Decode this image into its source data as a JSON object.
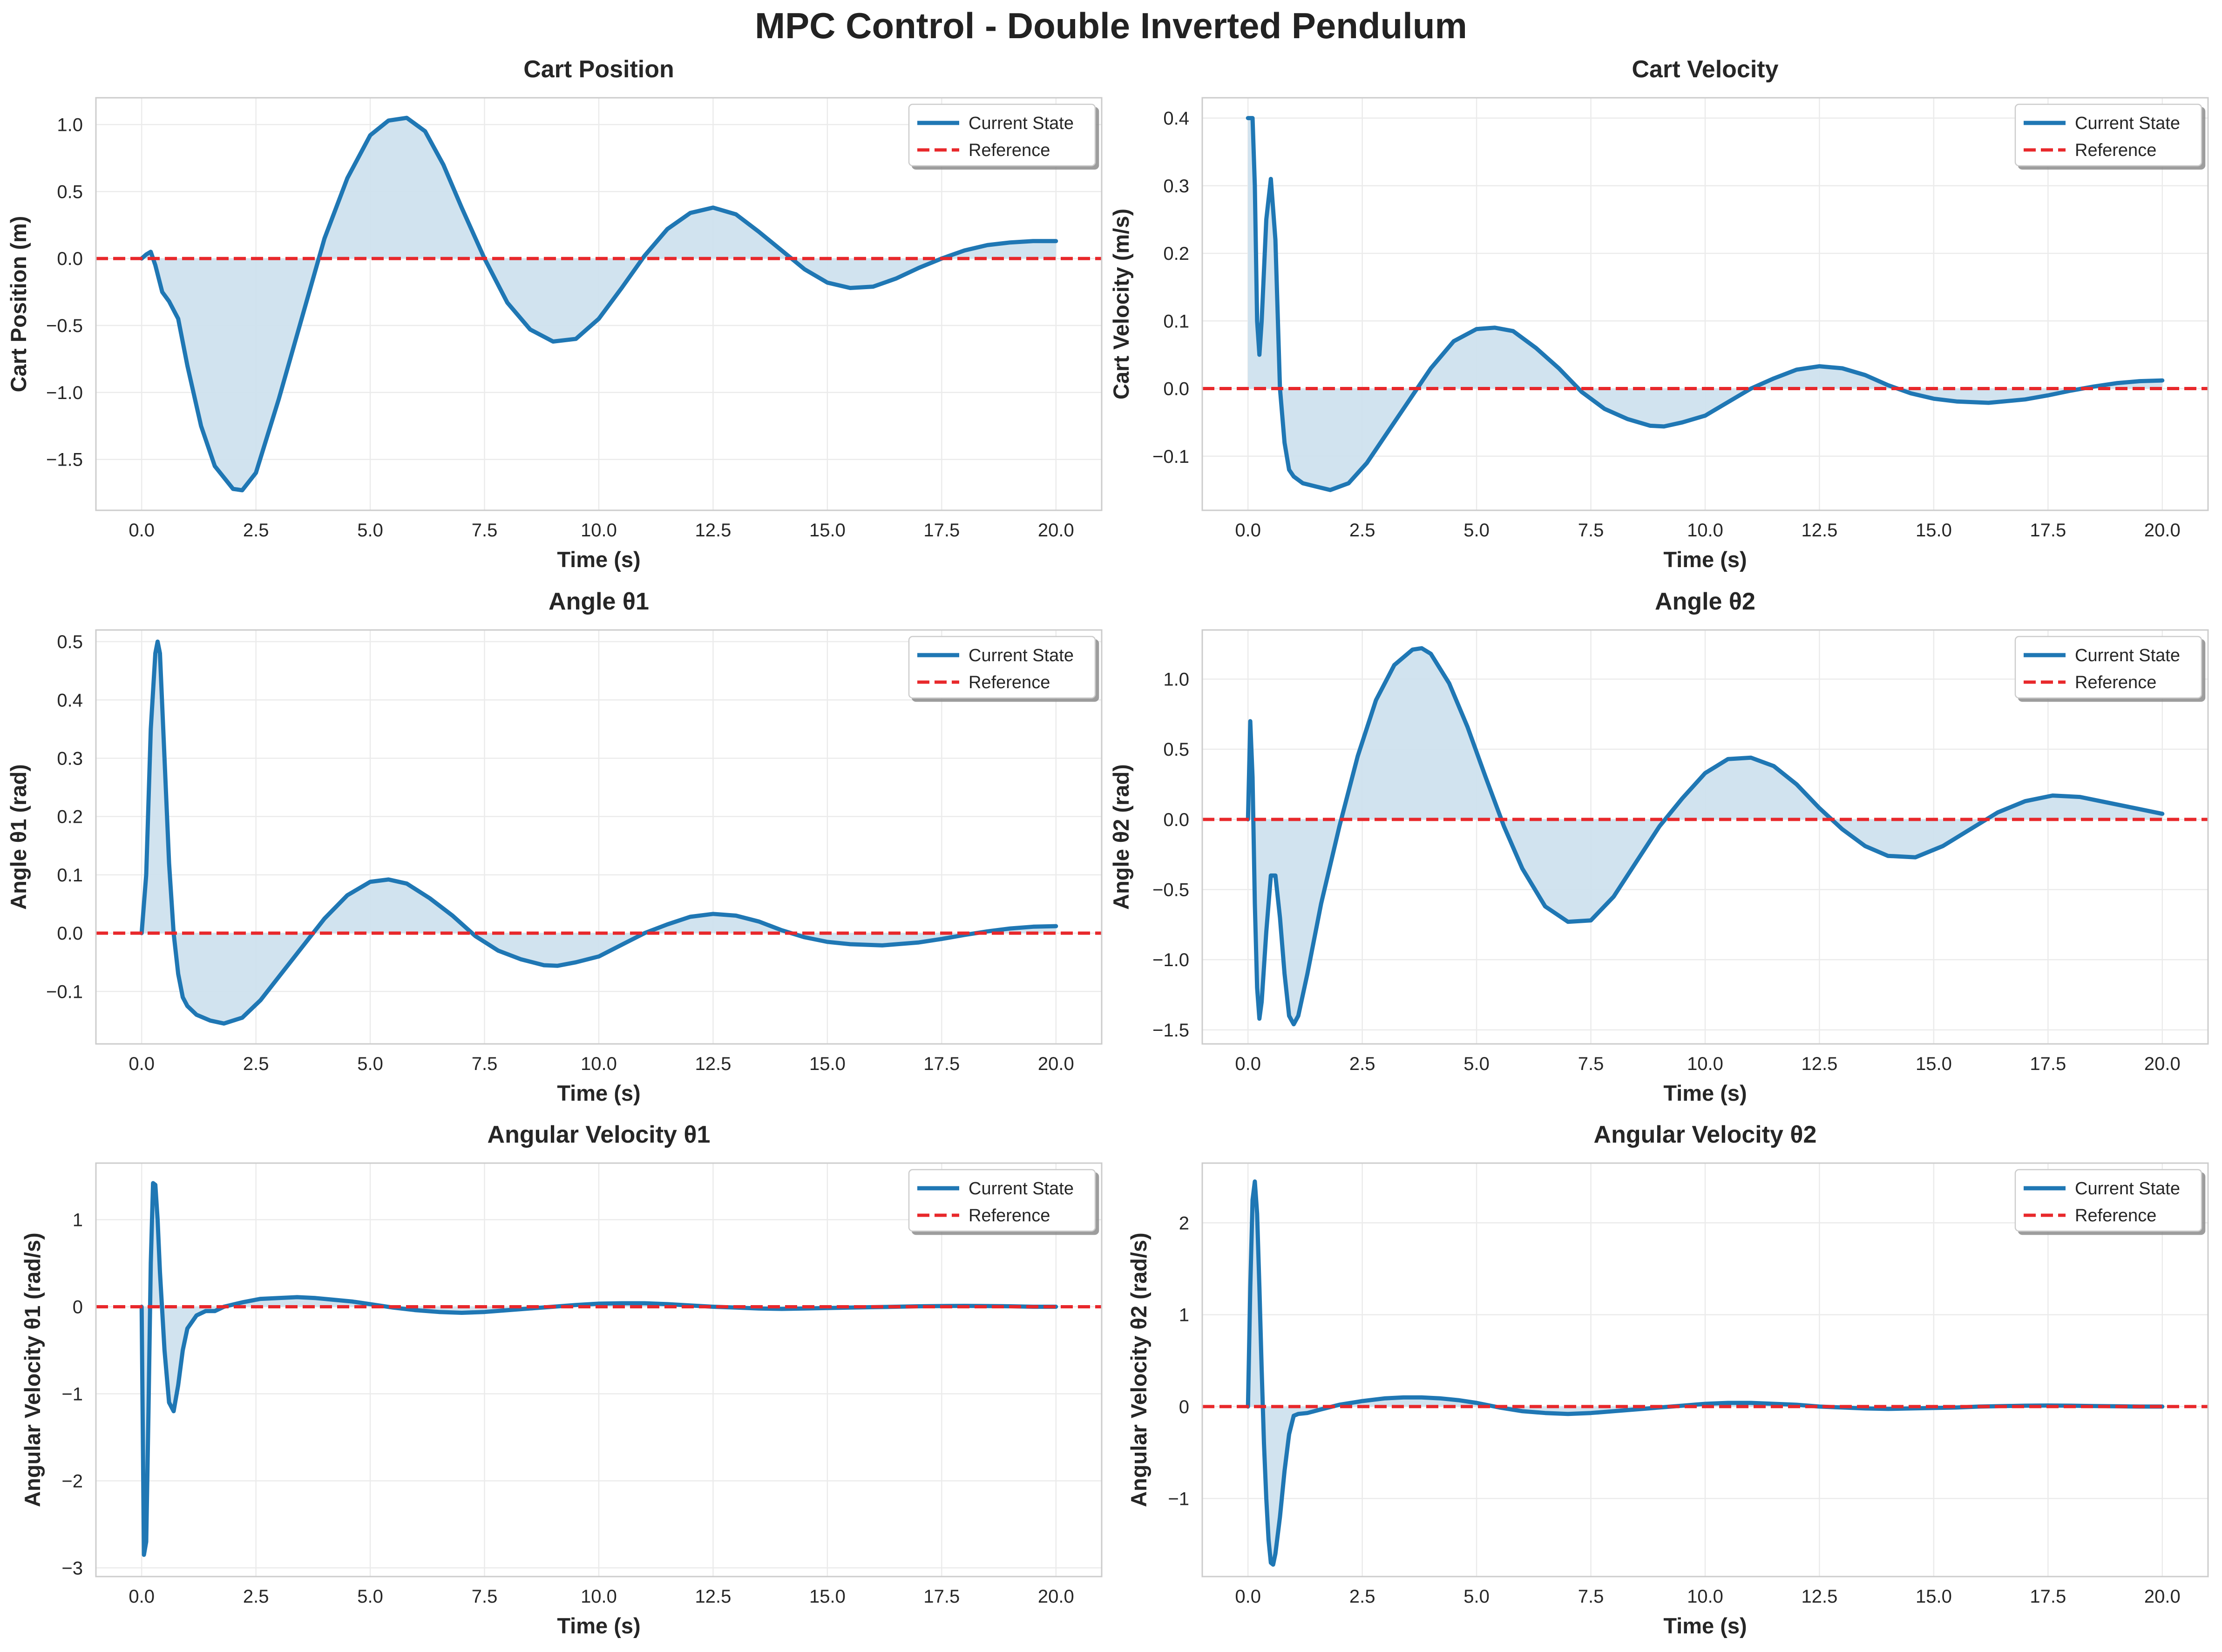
{
  "figure_title": "MPC Control - Double Inverted Pendulum",
  "colors": {
    "state": "#1f77b4",
    "reference": "#e8282b",
    "fill": "#cfe1ee",
    "grid": "#ebebeb",
    "spine": "#cccccc"
  },
  "chart_data": [
    {
      "type": "line",
      "title": "Cart Position",
      "xlabel": "Time (s)",
      "ylabel": "Cart Position (m)",
      "xlim": [
        -1,
        21
      ],
      "ylim": [
        -1.88,
        1.2
      ],
      "xticks": [
        0,
        2.5,
        5,
        7.5,
        10,
        12.5,
        15,
        17.5,
        20
      ],
      "xtick_labels": [
        "0.0",
        "2.5",
        "5.0",
        "7.5",
        "10.0",
        "12.5",
        "15.0",
        "17.5",
        "20.0"
      ],
      "yticks": [
        -1.5,
        -1.0,
        -0.5,
        0.0,
        0.5,
        1.0
      ],
      "ytick_labels": [
        "−1.5",
        "−1.0",
        "−0.5",
        "0.0",
        "0.5",
        "1.0"
      ],
      "legend": [
        "Current State",
        "Reference"
      ],
      "legend_position": "upper right",
      "grid": true,
      "reference_value": 0,
      "series": [
        {
          "name": "Current State",
          "x": [
            0.0,
            0.1,
            0.2,
            0.3,
            0.45,
            0.6,
            0.8,
            1.0,
            1.3,
            1.6,
            2.0,
            2.2,
            2.5,
            3.0,
            3.5,
            4.0,
            4.5,
            5.0,
            5.4,
            5.8,
            6.2,
            6.6,
            7.0,
            7.5,
            8.0,
            8.5,
            9.0,
            9.5,
            10.0,
            10.5,
            11.0,
            11.5,
            12.0,
            12.5,
            13.0,
            13.5,
            14.0,
            14.5,
            15.0,
            15.5,
            16.0,
            16.5,
            17.0,
            17.5,
            18.0,
            18.5,
            19.0,
            19.5,
            20.0
          ],
          "y": [
            0.0,
            0.03,
            0.05,
            -0.05,
            -0.25,
            -0.32,
            -0.45,
            -0.8,
            -1.25,
            -1.55,
            -1.72,
            -1.73,
            -1.6,
            -1.05,
            -0.45,
            0.15,
            0.6,
            0.92,
            1.03,
            1.05,
            0.95,
            0.7,
            0.38,
            0.0,
            -0.33,
            -0.53,
            -0.62,
            -0.6,
            -0.45,
            -0.22,
            0.02,
            0.22,
            0.34,
            0.38,
            0.33,
            0.2,
            0.06,
            -0.08,
            -0.18,
            -0.22,
            -0.21,
            -0.15,
            -0.07,
            0.0,
            0.06,
            0.1,
            0.12,
            0.13,
            0.13
          ]
        },
        {
          "name": "Reference",
          "x": [
            0,
            20
          ],
          "y": [
            0,
            0
          ]
        }
      ]
    },
    {
      "type": "line",
      "title": "Cart Velocity",
      "xlabel": "Time (s)",
      "ylabel": "Cart Velocity (m/s)",
      "xlim": [
        -1,
        21
      ],
      "ylim": [
        -0.18,
        0.43
      ],
      "xticks": [
        0,
        2.5,
        5,
        7.5,
        10,
        12.5,
        15,
        17.5,
        20
      ],
      "xtick_labels": [
        "0.0",
        "2.5",
        "5.0",
        "7.5",
        "10.0",
        "12.5",
        "15.0",
        "17.5",
        "20.0"
      ],
      "yticks": [
        -0.1,
        0.0,
        0.1,
        0.2,
        0.3,
        0.4
      ],
      "ytick_labels": [
        "−0.1",
        "0.0",
        "0.1",
        "0.2",
        "0.3",
        "0.4"
      ],
      "legend": [
        "Current State",
        "Reference"
      ],
      "legend_position": "upper right",
      "grid": true,
      "reference_value": 0,
      "series": [
        {
          "name": "Current State",
          "x": [
            0.0,
            0.1,
            0.15,
            0.2,
            0.25,
            0.3,
            0.4,
            0.5,
            0.6,
            0.7,
            0.8,
            0.9,
            1.0,
            1.2,
            1.5,
            1.8,
            2.2,
            2.6,
            3.0,
            3.5,
            4.0,
            4.5,
            5.0,
            5.4,
            5.8,
            6.3,
            6.8,
            7.3,
            7.8,
            8.3,
            8.8,
            9.1,
            9.5,
            10.0,
            10.5,
            11.0,
            11.5,
            12.0,
            12.5,
            13.0,
            13.5,
            14.0,
            14.5,
            15.0,
            15.5,
            16.2,
            17.0,
            17.5,
            18.0,
            18.5,
            19.0,
            19.5,
            20.0
          ],
          "y": [
            0.4,
            0.4,
            0.3,
            0.1,
            0.05,
            0.1,
            0.25,
            0.31,
            0.22,
            0.0,
            -0.08,
            -0.12,
            -0.13,
            -0.14,
            -0.145,
            -0.15,
            -0.14,
            -0.11,
            -0.07,
            -0.02,
            0.03,
            0.07,
            0.088,
            0.09,
            0.085,
            0.06,
            0.03,
            -0.005,
            -0.03,
            -0.045,
            -0.055,
            -0.056,
            -0.05,
            -0.04,
            -0.02,
            0.0,
            0.015,
            0.028,
            0.033,
            0.03,
            0.02,
            0.005,
            -0.007,
            -0.015,
            -0.019,
            -0.021,
            -0.016,
            -0.01,
            -0.003,
            0.003,
            0.008,
            0.011,
            0.012
          ]
        },
        {
          "name": "Reference",
          "x": [
            0,
            20
          ],
          "y": [
            0,
            0
          ]
        }
      ]
    },
    {
      "type": "line",
      "title": "Angle θ1",
      "xlabel": "Time (s)",
      "ylabel": "Angle θ1 (rad)",
      "xlim": [
        -1,
        21
      ],
      "ylim": [
        -0.19,
        0.52
      ],
      "xticks": [
        0,
        2.5,
        5,
        7.5,
        10,
        12.5,
        15,
        17.5,
        20
      ],
      "xtick_labels": [
        "0.0",
        "2.5",
        "5.0",
        "7.5",
        "10.0",
        "12.5",
        "15.0",
        "17.5",
        "20.0"
      ],
      "yticks": [
        -0.1,
        0.0,
        0.1,
        0.2,
        0.3,
        0.4,
        0.5
      ],
      "ytick_labels": [
        "−0.1",
        "0.0",
        "0.1",
        "0.2",
        "0.3",
        "0.4",
        "0.5"
      ],
      "legend": [
        "Current State",
        "Reference"
      ],
      "legend_position": "upper right",
      "grid": true,
      "reference_value": 0,
      "series": [
        {
          "name": "Current State",
          "x": [
            0.0,
            0.1,
            0.2,
            0.3,
            0.35,
            0.4,
            0.5,
            0.6,
            0.7,
            0.8,
            0.9,
            1.0,
            1.2,
            1.5,
            1.8,
            2.2,
            2.6,
            3.0,
            3.5,
            4.0,
            4.5,
            5.0,
            5.4,
            5.8,
            6.3,
            6.8,
            7.3,
            7.8,
            8.3,
            8.8,
            9.1,
            9.5,
            10.0,
            10.5,
            11.0,
            11.5,
            12.0,
            12.5,
            13.0,
            13.5,
            14.0,
            14.5,
            15.0,
            15.5,
            16.2,
            17.0,
            17.5,
            18.0,
            18.5,
            19.0,
            19.5,
            20.0
          ],
          "y": [
            0.0,
            0.1,
            0.35,
            0.48,
            0.5,
            0.48,
            0.3,
            0.12,
            0.0,
            -0.07,
            -0.11,
            -0.125,
            -0.14,
            -0.15,
            -0.155,
            -0.145,
            -0.115,
            -0.075,
            -0.025,
            0.025,
            0.065,
            0.088,
            0.092,
            0.085,
            0.06,
            0.03,
            -0.005,
            -0.03,
            -0.045,
            -0.055,
            -0.056,
            -0.05,
            -0.04,
            -0.02,
            0.0,
            0.015,
            0.028,
            0.033,
            0.03,
            0.02,
            0.005,
            -0.007,
            -0.015,
            -0.019,
            -0.021,
            -0.016,
            -0.01,
            -0.003,
            0.003,
            0.008,
            0.011,
            0.012
          ]
        },
        {
          "name": "Reference",
          "x": [
            0,
            20
          ],
          "y": [
            0,
            0
          ]
        }
      ]
    },
    {
      "type": "line",
      "title": "Angle θ2",
      "xlabel": "Time (s)",
      "ylabel": "Angle θ2 (rad)",
      "xlim": [
        -1,
        21
      ],
      "ylim": [
        -1.6,
        1.35
      ],
      "xticks": [
        0,
        2.5,
        5,
        7.5,
        10,
        12.5,
        15,
        17.5,
        20
      ],
      "xtick_labels": [
        "0.0",
        "2.5",
        "5.0",
        "7.5",
        "10.0",
        "12.5",
        "15.0",
        "17.5",
        "20.0"
      ],
      "yticks": [
        -1.5,
        -1.0,
        -0.5,
        0.0,
        0.5,
        1.0
      ],
      "ytick_labels": [
        "−1.5",
        "−1.0",
        "−0.5",
        "0.0",
        "0.5",
        "1.0"
      ],
      "legend": [
        "Current State",
        "Reference"
      ],
      "legend_position": "upper right",
      "grid": true,
      "reference_value": 0,
      "series": [
        {
          "name": "Current State",
          "x": [
            0.0,
            0.05,
            0.1,
            0.15,
            0.2,
            0.25,
            0.3,
            0.4,
            0.5,
            0.6,
            0.7,
            0.8,
            0.9,
            1.0,
            1.1,
            1.3,
            1.6,
            2.0,
            2.4,
            2.8,
            3.2,
            3.6,
            3.8,
            4.0,
            4.4,
            4.8,
            5.2,
            5.6,
            6.0,
            6.5,
            7.0,
            7.5,
            8.0,
            8.5,
            9.0,
            9.5,
            10.0,
            10.5,
            11.0,
            11.5,
            12.0,
            12.5,
            13.0,
            13.5,
            14.0,
            14.6,
            15.2,
            15.8,
            16.4,
            17.0,
            17.6,
            18.2,
            18.8,
            19.4,
            20.0
          ],
          "y": [
            0.0,
            0.7,
            0.3,
            -0.6,
            -1.2,
            -1.42,
            -1.3,
            -0.8,
            -0.4,
            -0.4,
            -0.7,
            -1.1,
            -1.4,
            -1.46,
            -1.4,
            -1.1,
            -0.6,
            -0.05,
            0.45,
            0.85,
            1.1,
            1.21,
            1.22,
            1.18,
            0.97,
            0.66,
            0.3,
            -0.05,
            -0.35,
            -0.62,
            -0.73,
            -0.72,
            -0.55,
            -0.3,
            -0.05,
            0.15,
            0.33,
            0.43,
            0.44,
            0.38,
            0.25,
            0.08,
            -0.07,
            -0.19,
            -0.26,
            -0.27,
            -0.19,
            -0.07,
            0.05,
            0.13,
            0.17,
            0.16,
            0.12,
            0.08,
            0.04
          ]
        },
        {
          "name": "Reference",
          "x": [
            0,
            20
          ],
          "y": [
            0,
            0
          ]
        }
      ]
    },
    {
      "type": "line",
      "title": "Angular Velocity θ1",
      "xlabel": "Time (s)",
      "ylabel": "Angular Velocity θ1 (rad/s)",
      "xlim": [
        -1,
        21
      ],
      "ylim": [
        -3.1,
        1.65
      ],
      "xticks": [
        0,
        2.5,
        5,
        7.5,
        10,
        12.5,
        15,
        17.5,
        20
      ],
      "xtick_labels": [
        "0.0",
        "2.5",
        "5.0",
        "7.5",
        "10.0",
        "12.5",
        "15.0",
        "17.5",
        "20.0"
      ],
      "yticks": [
        -3,
        -2,
        -1,
        0,
        1
      ],
      "ytick_labels": [
        "−3",
        "−2",
        "−1",
        "0",
        "1"
      ],
      "legend": [
        "Current State",
        "Reference"
      ],
      "legend_position": "upper right",
      "grid": true,
      "reference_value": 0,
      "series": [
        {
          "name": "Current State",
          "x": [
            0.0,
            0.05,
            0.1,
            0.15,
            0.2,
            0.25,
            0.3,
            0.35,
            0.4,
            0.5,
            0.6,
            0.7,
            0.8,
            0.9,
            1.0,
            1.2,
            1.4,
            1.6,
            1.8,
            2.2,
            2.6,
            3.0,
            3.4,
            3.8,
            4.2,
            4.6,
            5.0,
            5.5,
            6.0,
            6.5,
            7.0,
            7.5,
            8.0,
            8.5,
            9.0,
            9.5,
            10.0,
            10.5,
            11.0,
            11.5,
            12.0,
            12.5,
            13.0,
            13.5,
            14.0,
            14.5,
            15.0,
            15.5,
            16.0,
            16.5,
            17.0,
            17.5,
            18.0,
            18.5,
            19.0,
            19.5,
            20.0
          ],
          "y": [
            0.0,
            -2.85,
            -2.7,
            -1.2,
            0.5,
            1.42,
            1.4,
            1.0,
            0.4,
            -0.5,
            -1.1,
            -1.2,
            -0.9,
            -0.5,
            -0.25,
            -0.1,
            -0.05,
            -0.05,
            0.0,
            0.05,
            0.09,
            0.1,
            0.11,
            0.1,
            0.08,
            0.06,
            0.03,
            -0.01,
            -0.04,
            -0.06,
            -0.07,
            -0.06,
            -0.04,
            -0.02,
            0.0,
            0.02,
            0.035,
            0.04,
            0.04,
            0.03,
            0.015,
            0.0,
            -0.01,
            -0.02,
            -0.025,
            -0.02,
            -0.015,
            -0.01,
            -0.005,
            0.0,
            0.005,
            0.008,
            0.01,
            0.008,
            0.005,
            0.0,
            0.0
          ]
        },
        {
          "name": "Reference",
          "x": [
            0,
            20
          ],
          "y": [
            0,
            0
          ]
        }
      ]
    },
    {
      "type": "line",
      "title": "Angular Velocity θ2",
      "xlabel": "Time (s)",
      "ylabel": "Angular Velocity θ2 (rad/s)",
      "xlim": [
        -1,
        21
      ],
      "ylim": [
        -1.85,
        2.65
      ],
      "xticks": [
        0,
        2.5,
        5,
        7.5,
        10,
        12.5,
        15,
        17.5,
        20
      ],
      "xtick_labels": [
        "0.0",
        "2.5",
        "5.0",
        "7.5",
        "10.0",
        "12.5",
        "15.0",
        "17.5",
        "20.0"
      ],
      "yticks": [
        -1,
        0,
        1,
        2
      ],
      "ytick_labels": [
        "−1",
        "0",
        "1",
        "2"
      ],
      "legend": [
        "Current State",
        "Reference"
      ],
      "legend_position": "upper right",
      "grid": true,
      "reference_value": 0,
      "series": [
        {
          "name": "Current State",
          "x": [
            0.0,
            0.05,
            0.1,
            0.15,
            0.2,
            0.25,
            0.3,
            0.35,
            0.4,
            0.45,
            0.5,
            0.55,
            0.6,
            0.7,
            0.8,
            0.9,
            1.0,
            1.1,
            1.3,
            1.6,
            2.0,
            2.5,
            3.0,
            3.4,
            3.8,
            4.2,
            4.6,
            5.0,
            5.5,
            6.0,
            6.5,
            7.0,
            7.5,
            8.0,
            8.5,
            9.0,
            9.5,
            10.0,
            10.5,
            11.0,
            11.5,
            12.0,
            12.5,
            13.0,
            13.5,
            14.0,
            14.5,
            15.0,
            15.5,
            16.0,
            16.5,
            17.0,
            17.5,
            18.0,
            18.5,
            19.0,
            19.5,
            20.0
          ],
          "y": [
            0.0,
            1.3,
            2.25,
            2.45,
            2.1,
            1.3,
            0.4,
            -0.4,
            -1.0,
            -1.45,
            -1.7,
            -1.72,
            -1.6,
            -1.2,
            -0.7,
            -0.3,
            -0.1,
            -0.08,
            -0.07,
            -0.03,
            0.02,
            0.06,
            0.09,
            0.1,
            0.1,
            0.09,
            0.07,
            0.04,
            -0.01,
            -0.05,
            -0.07,
            -0.08,
            -0.07,
            -0.05,
            -0.03,
            -0.01,
            0.01,
            0.03,
            0.04,
            0.04,
            0.03,
            0.02,
            0.0,
            -0.01,
            -0.02,
            -0.025,
            -0.02,
            -0.015,
            -0.01,
            0.0,
            0.005,
            0.01,
            0.012,
            0.01,
            0.006,
            0.003,
            0.0,
            0.0
          ]
        },
        {
          "name": "Reference",
          "x": [
            0,
            20
          ],
          "y": [
            0,
            0
          ]
        }
      ]
    }
  ]
}
